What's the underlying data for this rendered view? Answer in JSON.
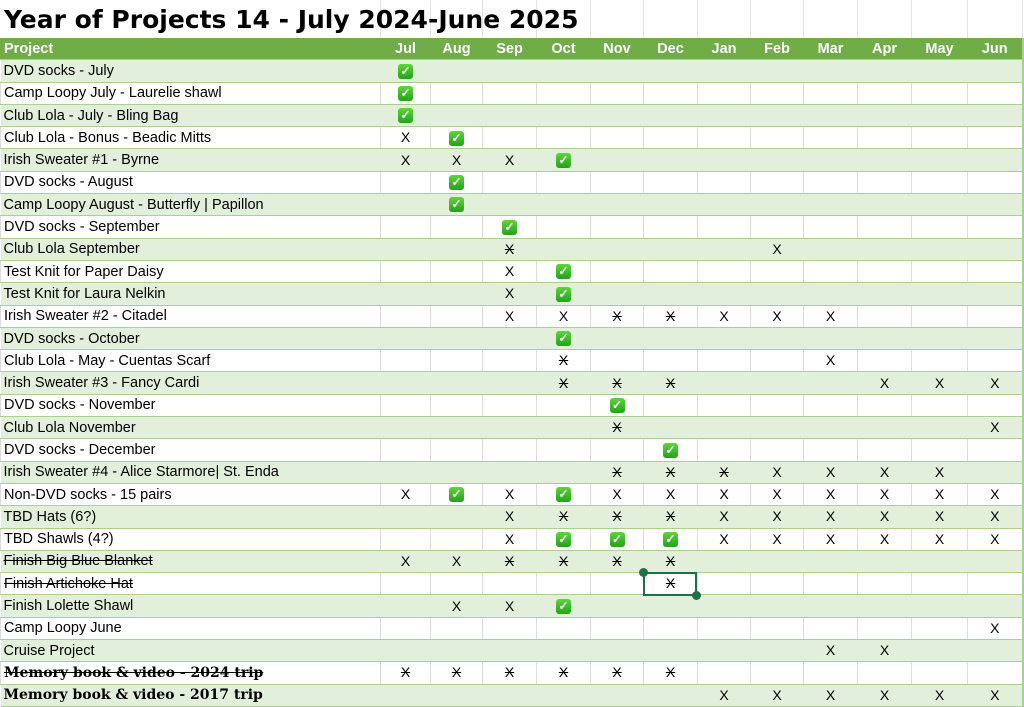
{
  "title": "Year of Projects 14 - July 2024-June 2025",
  "colors": {
    "header_bg": "#70ad47",
    "band": "#e2efda",
    "check": "#22a31a",
    "selection": "#1e7145"
  },
  "legend_marks": {
    "X": "planned",
    "X-": "planned (struck through)",
    "check": "done (green check icon)"
  },
  "columns": [
    "Project",
    "Jul",
    "Aug",
    "Sep",
    "Oct",
    "Nov",
    "Dec",
    "Jan",
    "Feb",
    "Mar",
    "Apr",
    "May",
    "Jun"
  ],
  "selected_cell": {
    "row": "Finish Artichoke Hat",
    "column": "Dec"
  },
  "rows": [
    {
      "project": "DVD socks - July",
      "style": "",
      "cells": [
        "check",
        "",
        "",
        "",
        "",
        "",
        "",
        "",
        "",
        "",
        "",
        ""
      ]
    },
    {
      "project": "Camp Loopy July - Laurelie shawl",
      "style": "",
      "cells": [
        "check",
        "",
        "",
        "",
        "",
        "",
        "",
        "",
        "",
        "",
        "",
        ""
      ]
    },
    {
      "project": "Club Lola - July - Bling Bag",
      "style": "",
      "cells": [
        "check",
        "",
        "",
        "",
        "",
        "",
        "",
        "",
        "",
        "",
        "",
        ""
      ]
    },
    {
      "project": "Club Lola - Bonus - Beadic Mitts",
      "style": "",
      "cells": [
        "X",
        "check",
        "",
        "",
        "",
        "",
        "",
        "",
        "",
        "",
        "",
        ""
      ]
    },
    {
      "project": "Irish Sweater #1 - Byrne",
      "style": "",
      "cells": [
        "X",
        "X",
        "X",
        "check",
        "",
        "",
        "",
        "",
        "",
        "",
        "",
        ""
      ]
    },
    {
      "project": "DVD socks - August",
      "style": "",
      "cells": [
        "",
        "check",
        "",
        "",
        "",
        "",
        "",
        "",
        "",
        "",
        "",
        ""
      ]
    },
    {
      "project": "Camp Loopy August - Butterfly | Papillon",
      "style": "",
      "cells": [
        "",
        "check",
        "",
        "",
        "",
        "",
        "",
        "",
        "",
        "",
        "",
        ""
      ]
    },
    {
      "project": "DVD socks - September",
      "style": "",
      "cells": [
        "",
        "",
        "check",
        "",
        "",
        "",
        "",
        "",
        "",
        "",
        "",
        ""
      ]
    },
    {
      "project": "Club Lola September",
      "style": "",
      "cells": [
        "",
        "",
        "X-",
        "",
        "",
        "",
        "",
        "X",
        "",
        "",
        "",
        ""
      ]
    },
    {
      "project": "Test Knit for Paper Daisy",
      "style": "",
      "cells": [
        "",
        "",
        "X",
        "check",
        "",
        "",
        "",
        "",
        "",
        "",
        "",
        ""
      ]
    },
    {
      "project": "Test Knit for Laura Nelkin",
      "style": "",
      "cells": [
        "",
        "",
        "X",
        "check",
        "",
        "",
        "",
        "",
        "",
        "",
        "",
        ""
      ]
    },
    {
      "project": "Irish Sweater #2 - Citadel",
      "style": "",
      "cells": [
        "",
        "",
        "X",
        "X",
        "X-",
        "X-",
        "X",
        "X",
        "X",
        "",
        "",
        ""
      ]
    },
    {
      "project": "DVD socks - October",
      "style": "",
      "cells": [
        "",
        "",
        "",
        "check",
        "",
        "",
        "",
        "",
        "",
        "",
        "",
        ""
      ]
    },
    {
      "project": "Club Lola - May - Cuentas Scarf",
      "style": "",
      "cells": [
        "",
        "",
        "",
        "X-",
        "",
        "",
        "",
        "",
        "X",
        "",
        "",
        ""
      ]
    },
    {
      "project": "Irish Sweater #3 - Fancy Cardi",
      "style": "",
      "cells": [
        "",
        "",
        "",
        "X-",
        "X-",
        "X-",
        "",
        "",
        "",
        "X",
        "X",
        "X"
      ]
    },
    {
      "project": "DVD socks - November",
      "style": "",
      "cells": [
        "",
        "",
        "",
        "",
        "check",
        "",
        "",
        "",
        "",
        "",
        "",
        ""
      ]
    },
    {
      "project": "Club Lola November",
      "style": "",
      "cells": [
        "",
        "",
        "",
        "",
        "X-",
        "",
        "",
        "",
        "",
        "",
        "",
        "X"
      ]
    },
    {
      "project": "DVD socks - December",
      "style": "",
      "cells": [
        "",
        "",
        "",
        "",
        "",
        "check",
        "",
        "",
        "",
        "",
        "",
        ""
      ]
    },
    {
      "project": "Irish Sweater #4 - Alice Starmore| St. Enda",
      "style": "",
      "cells": [
        "",
        "",
        "",
        "",
        "X-",
        "X-",
        "X-",
        "X",
        "X",
        "X",
        "X",
        ""
      ]
    },
    {
      "project": "Non-DVD socks - 15 pairs",
      "style": "",
      "cells": [
        "X",
        "check",
        "X",
        "check",
        "X",
        "X",
        "X",
        "X",
        "X",
        "X",
        "X",
        "X"
      ]
    },
    {
      "project": "TBD Hats (6?)",
      "style": "",
      "cells": [
        "",
        "",
        "X",
        "X-",
        "X-",
        "X-",
        "X",
        "X",
        "X",
        "X",
        "X",
        "X"
      ]
    },
    {
      "project": "TBD Shawls (4?)",
      "style": "",
      "cells": [
        "",
        "",
        "X",
        "check",
        "check",
        "check",
        "X",
        "X",
        "X",
        "X",
        "X",
        "X"
      ]
    },
    {
      "project": "Finish Big Blue Blanket",
      "style": "strike",
      "cells": [
        "X",
        "X",
        "X-",
        "X-",
        "X-",
        "X-",
        "",
        "",
        "",
        "",
        "",
        ""
      ]
    },
    {
      "project": "Finish Artichoke Hat",
      "style": "strike",
      "cells": [
        "",
        "",
        "",
        "",
        "",
        "X-",
        "",
        "",
        "",
        "",
        "",
        ""
      ]
    },
    {
      "project": "Finish Lolette Shawl",
      "style": "",
      "cells": [
        "",
        "X",
        "X",
        "check",
        "",
        "",
        "",
        "",
        "",
        "",
        "",
        ""
      ]
    },
    {
      "project": "Camp Loopy June",
      "style": "",
      "cells": [
        "",
        "",
        "",
        "",
        "",
        "",
        "",
        "",
        "",
        "",
        "",
        "X"
      ]
    },
    {
      "project": "Cruise Project",
      "style": "",
      "cells": [
        "",
        "",
        "",
        "",
        "",
        "",
        "",
        "",
        "X",
        "X",
        "",
        ""
      ]
    },
    {
      "project": "Memory book & video - 2024 trip",
      "style": "bold strike",
      "cells": [
        "X-",
        "X-",
        "X-",
        "X-",
        "X-",
        "X-",
        "",
        "",
        "",
        "",
        "",
        ""
      ]
    },
    {
      "project": "Memory book & video - 2017 trip",
      "style": "bold",
      "cells": [
        "",
        "",
        "",
        "",
        "",
        "",
        "X",
        "X",
        "X",
        "X",
        "X",
        "X"
      ]
    }
  ]
}
